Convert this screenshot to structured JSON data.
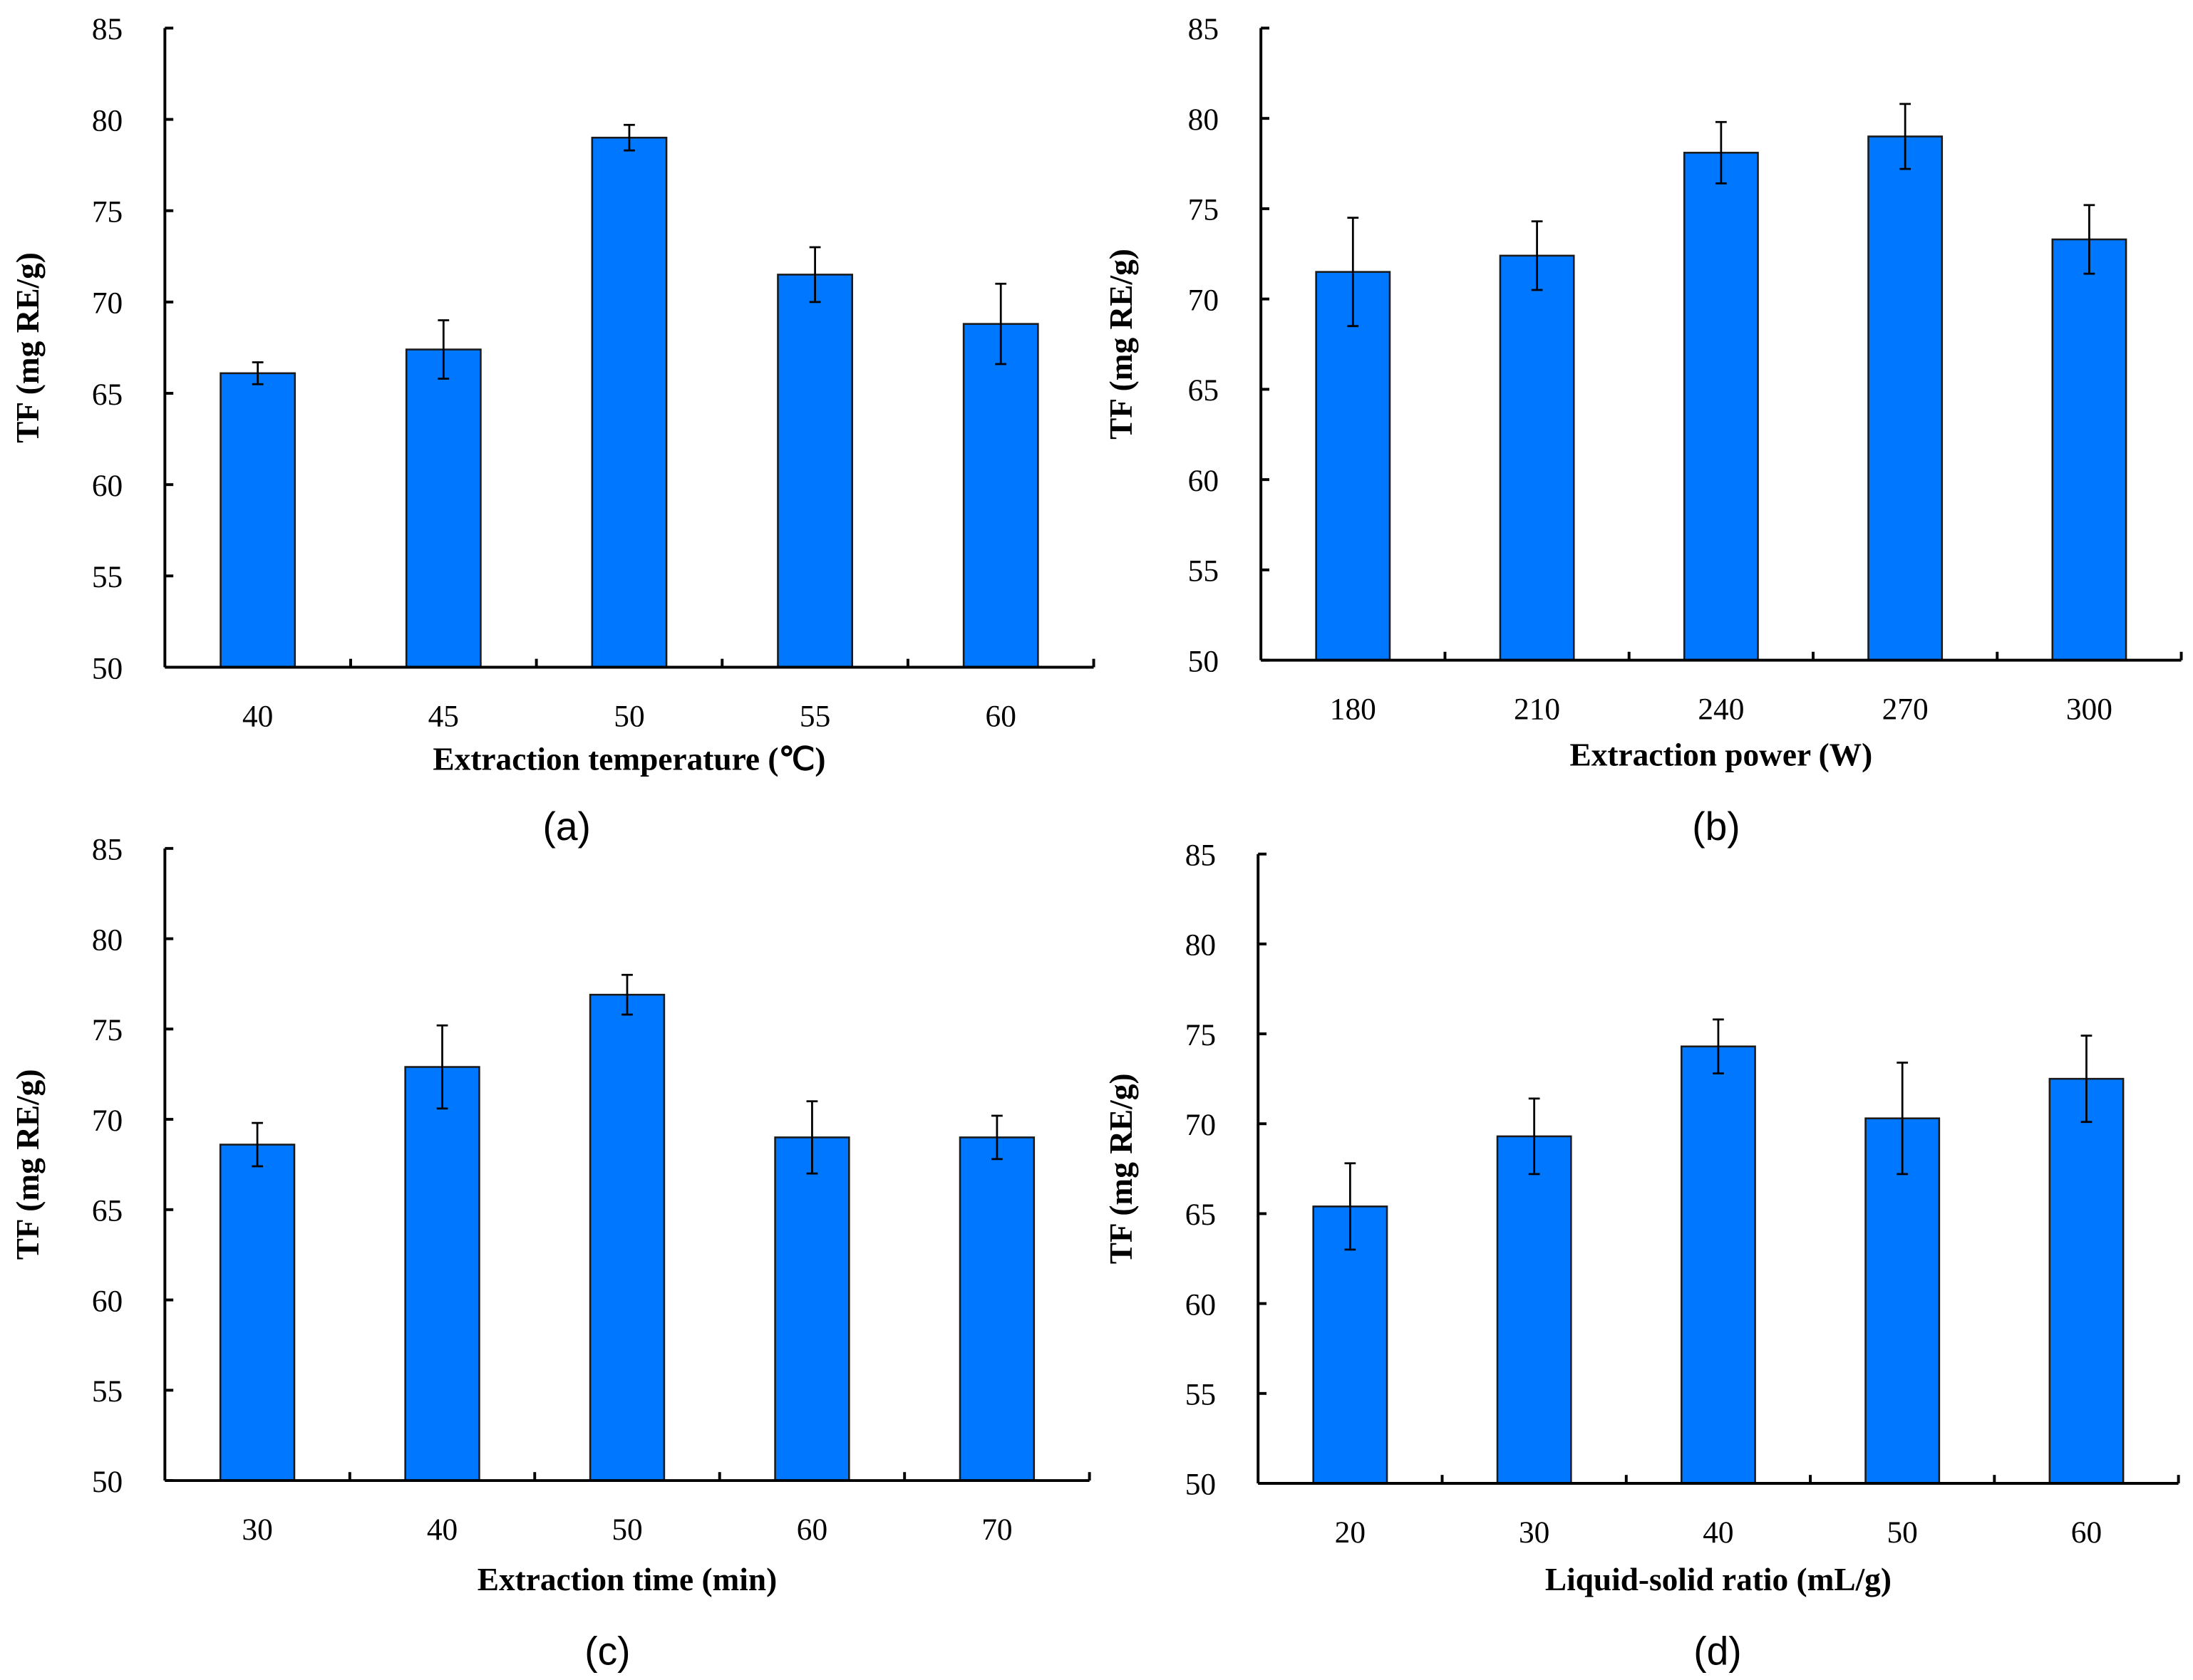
{
  "colors": {
    "bar": "#0077FF",
    "axis": "#000000"
  },
  "chart_data": [
    {
      "type": "bar",
      "caption": "(a)",
      "categories": [
        "40",
        "45",
        "50",
        "55",
        "60"
      ],
      "values": [
        66.1,
        67.4,
        79.0,
        71.5,
        68.8
      ],
      "errors": [
        0.6,
        1.6,
        0.7,
        1.5,
        2.2
      ],
      "xlabel": "Extraction temperature (℃)",
      "ylabel": "TF (mg RE/g)",
      "ylim": [
        50,
        85
      ],
      "yticks": [
        "50",
        "55",
        "60",
        "65",
        "70",
        "75",
        "80",
        "85"
      ],
      "grid": false
    },
    {
      "type": "bar",
      "caption": "(b)",
      "categories": [
        "180",
        "210",
        "240",
        "270",
        "300"
      ],
      "values": [
        71.5,
        72.4,
        78.1,
        79.0,
        73.3
      ],
      "errors": [
        3.0,
        1.9,
        1.7,
        1.8,
        1.9
      ],
      "xlabel": "Extraction power (W)",
      "ylabel": "TF (mg RE/g)",
      "ylim": [
        50,
        85
      ],
      "yticks": [
        "50",
        "55",
        "60",
        "65",
        "70",
        "75",
        "80",
        "85"
      ],
      "grid": false
    },
    {
      "type": "bar",
      "caption": "(c)",
      "categories": [
        "30",
        "40",
        "50",
        "60",
        "70"
      ],
      "values": [
        68.6,
        72.9,
        76.9,
        69.0,
        69.0
      ],
      "errors": [
        1.2,
        2.3,
        1.1,
        2.0,
        1.2
      ],
      "xlabel": "Extraction time (min)",
      "ylabel": "TF (mg RE/g)",
      "ylim": [
        50,
        85
      ],
      "yticks": [
        "50",
        "55",
        "60",
        "65",
        "70",
        "75",
        "80",
        "85"
      ],
      "grid": false
    },
    {
      "type": "bar",
      "caption": "(d)",
      "categories": [
        "20",
        "30",
        "40",
        "50",
        "60"
      ],
      "values": [
        65.4,
        69.3,
        74.3,
        70.3,
        72.5
      ],
      "errors": [
        2.4,
        2.1,
        1.5,
        3.1,
        2.4
      ],
      "xlabel": "Liquid-solid ratio (mL/g)",
      "ylabel": "TF (mg RE/g)",
      "ylim": [
        50,
        85
      ],
      "yticks": [
        "50",
        "55",
        "60",
        "65",
        "70",
        "75",
        "80",
        "85"
      ],
      "grid": false
    }
  ]
}
